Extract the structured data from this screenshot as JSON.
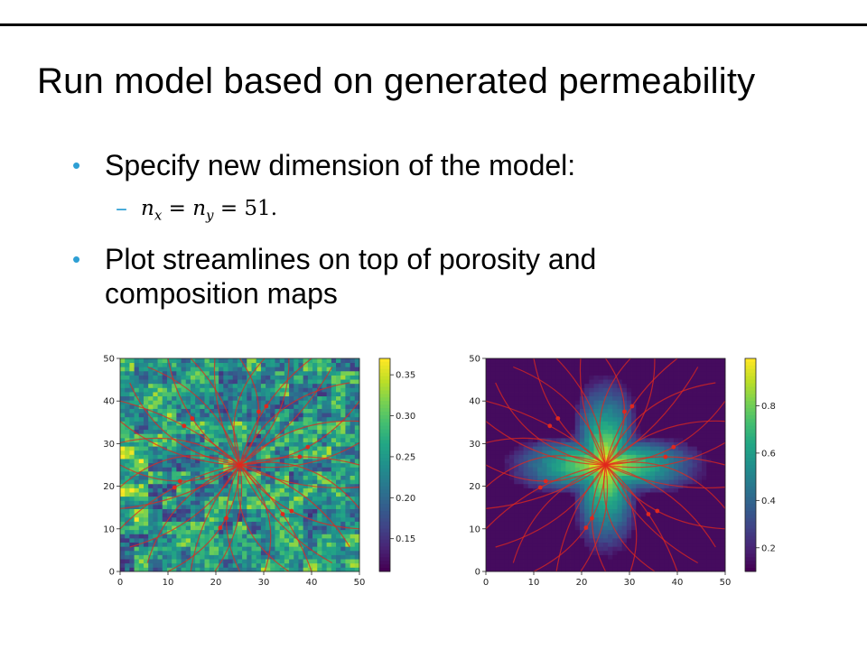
{
  "slide": {
    "title": "Run model based on generated permeability",
    "bullets": [
      "Specify new dimension of the model:",
      "Plot streamlines on top of porosity and composition maps"
    ],
    "bullet2_lines": [
      "Plot streamlines on top of porosity and",
      "composition maps"
    ],
    "sub_bullet": {
      "var1": "n",
      "sub1": "x",
      "eq1": " = ",
      "var2": "n",
      "sub2": "y",
      "eq2": " = ",
      "value": "51."
    }
  },
  "colors": {
    "bullet": "#2e9fd4",
    "stream": "#e0281e",
    "rule": "#000000"
  },
  "chart_data": [
    {
      "type": "heatmap",
      "colormap": "viridis",
      "overlay": "streamlines",
      "x_ticks": [
        "0",
        "10",
        "20",
        "30",
        "40",
        "50"
      ],
      "y_ticks": [
        "0",
        "10",
        "20",
        "30",
        "40",
        "50"
      ],
      "xlim": [
        0,
        50
      ],
      "ylim": [
        0,
        50
      ],
      "colorbar_ticks": [
        "0.15",
        "0.20",
        "0.25",
        "0.30",
        "0.35"
      ],
      "colorbar_values": [
        0.15,
        0.2,
        0.25,
        0.3,
        0.35
      ],
      "colorbar_range": [
        0.11,
        0.37
      ],
      "grid": "off"
    },
    {
      "type": "heatmap",
      "colormap": "viridis",
      "overlay": "streamlines",
      "x_ticks": [
        "0",
        "10",
        "20",
        "30",
        "40",
        "50"
      ],
      "y_ticks": [
        "0",
        "10",
        "20",
        "30",
        "40",
        "50"
      ],
      "xlim": [
        0,
        50
      ],
      "ylim": [
        0,
        50
      ],
      "colorbar_ticks": [
        "0.2",
        "0.4",
        "0.6",
        "0.8"
      ],
      "colorbar_values": [
        0.2,
        0.4,
        0.6,
        0.8
      ],
      "colorbar_range": [
        0.1,
        1.0
      ],
      "grid": "off"
    }
  ]
}
